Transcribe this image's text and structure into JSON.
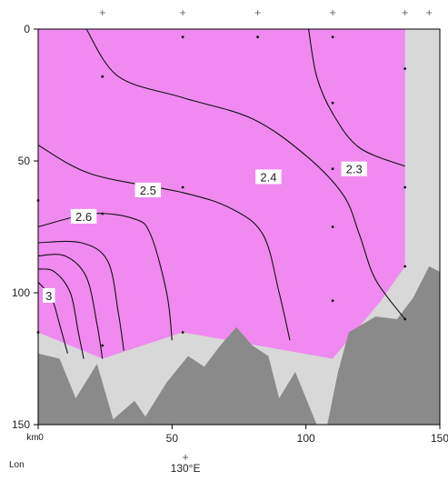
{
  "chart_data": {
    "type": "section-contour",
    "x_axis": {
      "unit_label": "km",
      "ticks": [
        0,
        50,
        100,
        150
      ],
      "range": [
        0,
        150
      ]
    },
    "y_axis": {
      "ticks": [
        0,
        50,
        100,
        150
      ],
      "range": [
        0,
        150
      ],
      "inverted": true
    },
    "lon_axis": {
      "label": "Lon",
      "ticks": [
        {
          "x_km": 55,
          "label": "130°E"
        }
      ]
    },
    "fill_color": "#f08af0",
    "land_light_color": "#d8d8d8",
    "land_dark_color": "#8a8a8a",
    "stations": [
      {
        "x": 0,
        "depths": [
          65,
          115
        ]
      },
      {
        "x": 24,
        "depths": [
          18,
          70,
          120
        ]
      },
      {
        "x": 54,
        "depths": [
          3,
          60,
          115
        ]
      },
      {
        "x": 82,
        "depths": [
          3
        ]
      },
      {
        "x": 110,
        "depths": [
          3,
          28,
          53,
          75,
          103
        ]
      },
      {
        "x": 137,
        "depths": [
          15,
          60,
          90,
          110
        ]
      }
    ],
    "top_station_markers": [
      24,
      54,
      82,
      110,
      137,
      146
    ],
    "contours": [
      {
        "label": "2.3",
        "label_pos": [
          118,
          53
        ],
        "points": [
          [
            101,
            0
          ],
          [
            104,
            18
          ],
          [
            110,
            32
          ],
          [
            120,
            45
          ],
          [
            137,
            52
          ]
        ]
      },
      {
        "label": "2.4",
        "label_pos": [
          86,
          56
        ],
        "points": [
          [
            18,
            0
          ],
          [
            30,
            18
          ],
          [
            54,
            26
          ],
          [
            80,
            34
          ],
          [
            100,
            48
          ],
          [
            114,
            63
          ],
          [
            120,
            78
          ],
          [
            126,
            95
          ],
          [
            137,
            110
          ]
        ]
      },
      {
        "label": "2.5",
        "label_pos": [
          41,
          61
        ],
        "points": [
          [
            0,
            44
          ],
          [
            20,
            55
          ],
          [
            54,
            62
          ],
          [
            72,
            68
          ],
          [
            84,
            78
          ],
          [
            90,
            100
          ],
          [
            94,
            118
          ]
        ]
      },
      {
        "label": "2.6",
        "label_pos": [
          17,
          71
        ],
        "points": [
          [
            0,
            75
          ],
          [
            20,
            70
          ],
          [
            36,
            72
          ],
          [
            42,
            78
          ],
          [
            48,
            100
          ],
          [
            50,
            118
          ]
        ]
      },
      {
        "label": "",
        "label_pos": null,
        "points": [
          [
            0,
            81
          ],
          [
            16,
            81
          ],
          [
            26,
            88
          ],
          [
            30,
            108
          ],
          [
            32,
            122
          ]
        ]
      },
      {
        "label": "",
        "label_pos": null,
        "points": [
          [
            0,
            86
          ],
          [
            10,
            86
          ],
          [
            18,
            94
          ],
          [
            22,
            112
          ],
          [
            24,
            125
          ]
        ]
      },
      {
        "label": "",
        "label_pos": null,
        "points": [
          [
            0,
            91
          ],
          [
            6,
            92
          ],
          [
            12,
            100
          ],
          [
            15,
            115
          ],
          [
            17,
            125
          ]
        ]
      },
      {
        "label": "3",
        "label_pos": [
          4,
          101
        ],
        "points": [
          [
            0,
            96
          ],
          [
            5,
            102
          ],
          [
            8,
            112
          ],
          [
            11,
            123
          ]
        ]
      }
    ],
    "land_light": [
      [
        0,
        115
      ],
      [
        24,
        125
      ],
      [
        54,
        115
      ],
      [
        82,
        120
      ],
      [
        110,
        125
      ],
      [
        128,
        103
      ],
      [
        137,
        90
      ],
      [
        137,
        0
      ],
      [
        150,
        0
      ],
      [
        150,
        150
      ],
      [
        0,
        150
      ]
    ],
    "land_dark": [
      [
        0,
        123
      ],
      [
        8,
        125
      ],
      [
        14,
        140
      ],
      [
        22,
        127
      ],
      [
        28,
        148
      ],
      [
        36,
        141
      ],
      [
        40,
        147
      ],
      [
        48,
        134
      ],
      [
        56,
        124
      ],
      [
        62,
        128
      ],
      [
        68,
        120
      ],
      [
        74,
        113
      ],
      [
        80,
        120
      ],
      [
        86,
        124
      ],
      [
        90,
        140
      ],
      [
        96,
        130
      ],
      [
        104,
        150
      ],
      [
        108,
        150
      ],
      [
        112,
        130
      ],
      [
        116,
        115
      ],
      [
        126,
        109
      ],
      [
        134,
        110
      ],
      [
        140,
        102
      ],
      [
        146,
        90
      ],
      [
        150,
        92
      ],
      [
        150,
        150
      ],
      [
        0,
        150
      ]
    ]
  }
}
